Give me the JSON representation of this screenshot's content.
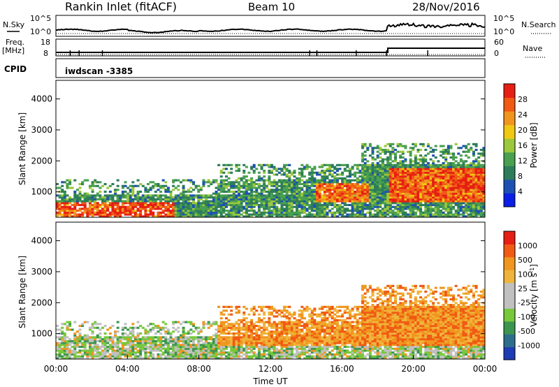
{
  "header": {
    "station": "Rankin Inlet (fitACF)",
    "beam": "Beam 10",
    "date": "28/Nov/2016"
  },
  "top_panels": {
    "nsky_label": "N.Sky",
    "nsearch_label": "N.Search",
    "counts_ticks": [
      "10^5",
      "10^0"
    ],
    "freq_label_1": "Freq.",
    "freq_label_2": "[MHz]",
    "freq_ticks": [
      "18",
      "8"
    ],
    "nave_label": "Nave",
    "nave_ticks": [
      "60",
      "0"
    ],
    "cpid_label": "CPID",
    "cpid_value": "iwdscan -3385"
  },
  "colors": {
    "power_scale": [
      "#0a1ee6",
      "#1e50b4",
      "#2e7d5a",
      "#4aa050",
      "#9bc83c",
      "#f0c814",
      "#f0961e",
      "#f05a14",
      "#e61e14"
    ],
    "velocity_scale": [
      "#e61e14",
      "#f05a14",
      "#f0961e",
      "#f0b43c",
      "#c0c0c0",
      "#c0c0c0",
      "#78c83c",
      "#3c9650",
      "#2d6e8c",
      "#1e3cb4"
    ]
  },
  "chart_data": [
    {
      "type": "heatmap",
      "name": "power",
      "xlabel": "",
      "ylabel": "Slant Range [km]",
      "y_ticks": [
        "1000",
        "2000",
        "3000",
        "4000"
      ],
      "ylim": [
        180,
        4600
      ],
      "colorbar_label": "Power [dB]",
      "colorbar_ticks": [
        "28",
        "24",
        "20",
        "16",
        "12",
        "8",
        "4"
      ],
      "clim": [
        0,
        32
      ]
    },
    {
      "type": "heatmap",
      "name": "velocity",
      "xlabel": "Time UT",
      "x_ticks": [
        "00:00",
        "04:00",
        "08:00",
        "12:00",
        "16:00",
        "20:00",
        "00:00"
      ],
      "xlim_hours": [
        0,
        24
      ],
      "ylabel": "Slant Range [km]",
      "y_ticks": [
        "1000",
        "2000",
        "3000",
        "4000"
      ],
      "ylim": [
        180,
        4600
      ],
      "colorbar_label": "Velocity [m s-1]",
      "colorbar_ticks": [
        "1000",
        "500",
        "100",
        "25",
        "-25",
        "-100",
        "-500",
        "-1000"
      ]
    }
  ]
}
